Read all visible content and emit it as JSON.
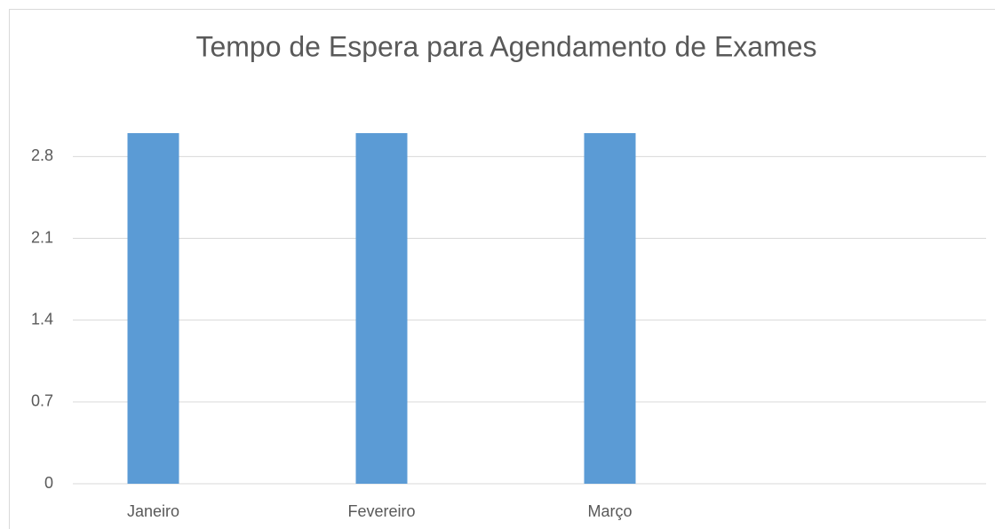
{
  "chart_data": {
    "type": "bar",
    "title": "Tempo de Espera para Agendamento de Exames",
    "categories": [
      "Janeiro",
      "Fevereiro",
      "Março",
      null
    ],
    "values": [
      3,
      3,
      3,
      null
    ],
    "color": "#5b9bd5",
    "ylim": [
      0,
      3
    ],
    "yticks": [
      0,
      0.7,
      1.4,
      2.1,
      2.8
    ],
    "grid": true
  }
}
